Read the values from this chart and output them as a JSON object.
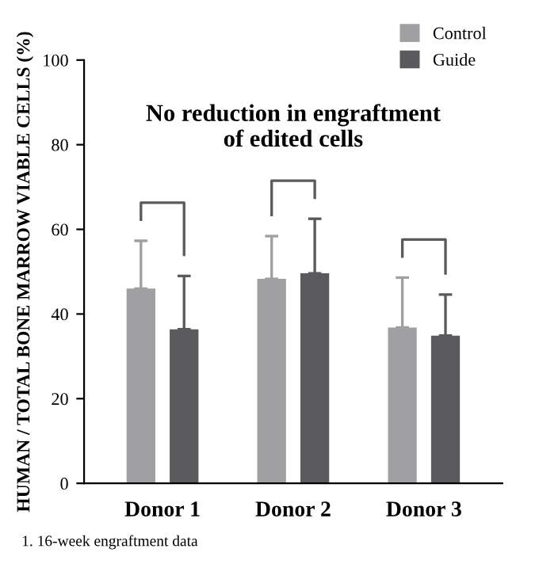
{
  "chart_data": {
    "type": "bar",
    "categories": [
      "Donor 1",
      "Donor 2",
      "Donor 3"
    ],
    "ylabel": "HUMAN / TOTAL BONE MARROW VIABLE CELLS (%)",
    "series": [
      {
        "name": "Control",
        "color": "#a0a0a2",
        "values": [
          46,
          48.3,
          36.8
        ],
        "errors": [
          [
            46,
            57.3
          ],
          [
            48.3,
            58.4
          ],
          [
            36.8,
            48.6
          ]
        ]
      },
      {
        "name": "Guide",
        "color": "#5a5a5c",
        "values": [
          36.4,
          49.6,
          34.9
        ],
        "errors": [
          [
            36.4,
            49
          ],
          [
            49.6,
            62.5
          ],
          [
            34.9,
            44.6
          ]
        ]
      }
    ],
    "ylim": [
      0,
      100
    ],
    "yticks": [
      0,
      20,
      40,
      60,
      80,
      100
    ],
    "annotations": [
      "No reduction in engraftment\nof edited cells",
      "1. 16-week engraftment data"
    ],
    "legend": "top right",
    "grid": false
  }
}
